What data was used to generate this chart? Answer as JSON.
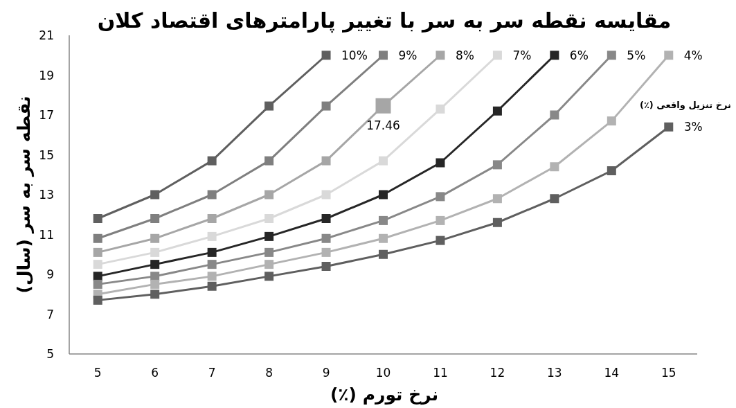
{
  "chart_data": {
    "type": "line",
    "title": "مقایسه نقطه سر به سر با تغییر پارامترهای اقتصاد کلان",
    "xlabel": "نرخ تورم (٪)",
    "ylabel": "نقطه سر به سر (سال)",
    "legend_title": "نرخ تنزیل واقعی (٪)",
    "categories": [
      "5",
      "6",
      "7",
      "8",
      "9",
      "10",
      "11",
      "12",
      "13",
      "14",
      "15"
    ],
    "ylim": [
      5,
      21
    ],
    "yticks": [
      5,
      7,
      9,
      11,
      13,
      15,
      17,
      19,
      21
    ],
    "grid": false,
    "marker": "square",
    "line_style": "solid",
    "series": [
      {
        "name": "10%",
        "color": "#5f5f5f",
        "values": [
          11.8,
          13.0,
          14.7,
          17.45,
          20.0,
          null,
          null,
          null,
          null,
          null,
          null
        ]
      },
      {
        "name": "9%",
        "color": "#7f7f7f",
        "values": [
          10.8,
          11.8,
          13.0,
          14.7,
          17.45,
          20.0,
          null,
          null,
          null,
          null,
          null
        ]
      },
      {
        "name": "8%",
        "color": "#a6a6a6",
        "values": [
          10.1,
          10.8,
          11.8,
          13.0,
          14.7,
          17.46,
          20.0,
          null,
          null,
          null,
          null
        ],
        "value_labels": [
          null,
          null,
          null,
          null,
          null,
          "17.46",
          null,
          null,
          null,
          null,
          null
        ]
      },
      {
        "name": "7%",
        "color": "#d9d9d9",
        "values": [
          9.5,
          10.1,
          10.9,
          11.8,
          13.0,
          14.7,
          17.3,
          20.0,
          null,
          null,
          null
        ]
      },
      {
        "name": "6%",
        "color": "#262626",
        "values": [
          8.9,
          9.5,
          10.1,
          10.9,
          11.8,
          13.0,
          14.6,
          17.2,
          20.0,
          null,
          null
        ]
      },
      {
        "name": "5%",
        "color": "#888888",
        "values": [
          8.5,
          8.9,
          9.5,
          10.1,
          10.8,
          11.7,
          12.9,
          14.5,
          17.0,
          20.0,
          null
        ]
      },
      {
        "name": "4%",
        "color": "#b2b2b2",
        "values": [
          8.0,
          8.5,
          8.9,
          9.5,
          10.1,
          10.8,
          11.7,
          12.8,
          14.4,
          16.7,
          20.0
        ]
      },
      {
        "name": "3%",
        "color": "#5f5f5f",
        "values": [
          7.7,
          8.0,
          8.4,
          8.9,
          9.4,
          10.0,
          10.7,
          11.6,
          12.8,
          14.2,
          16.4
        ]
      }
    ]
  }
}
